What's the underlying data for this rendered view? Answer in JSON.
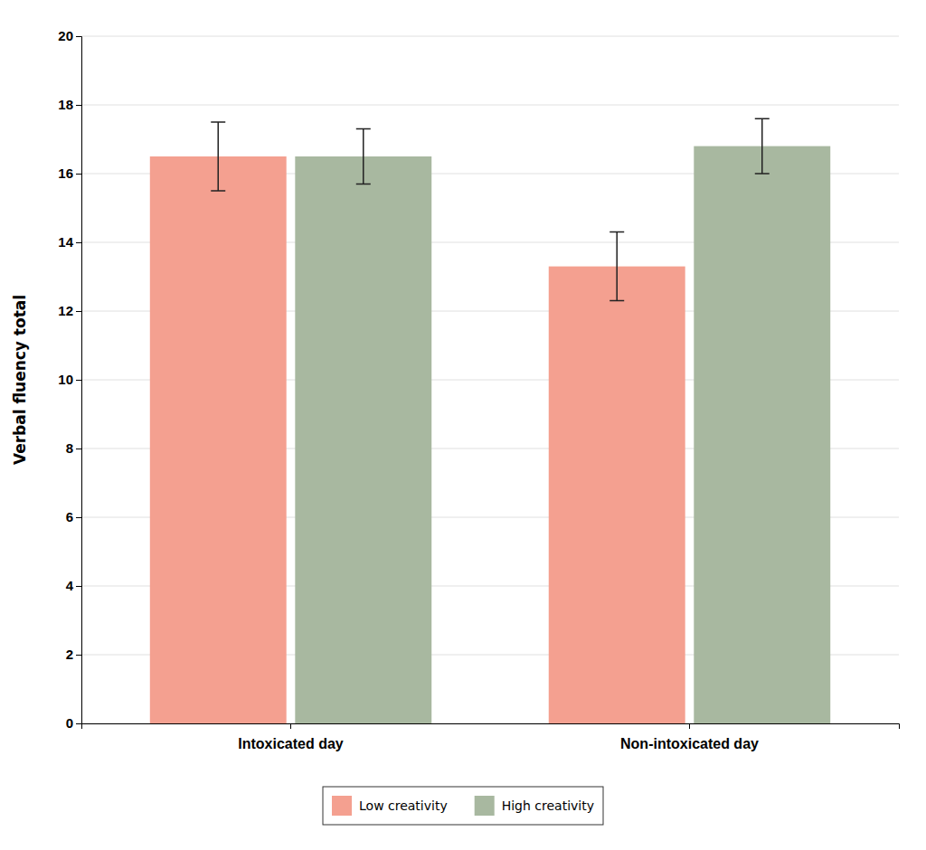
{
  "chart_data": {
    "type": "bar",
    "categories": [
      "Intoxicated day",
      "Non-intoxicated day"
    ],
    "ylabel": "Verbal fluency total",
    "series": [
      {
        "name": "Low creativity",
        "color": "#F4A090",
        "values": [
          16.5,
          13.3
        ],
        "errors": [
          1.0,
          1.0
        ]
      },
      {
        "name": "High creativity",
        "color": "#A8B8A0",
        "values": [
          16.5,
          16.8
        ],
        "errors": [
          0.8,
          0.8
        ]
      }
    ],
    "ylim": [
      0,
      20
    ],
    "yticks": [
      0,
      2,
      4,
      6,
      8,
      10,
      12,
      14,
      16,
      18,
      20
    ],
    "grid": true,
    "legend": "bottom"
  }
}
